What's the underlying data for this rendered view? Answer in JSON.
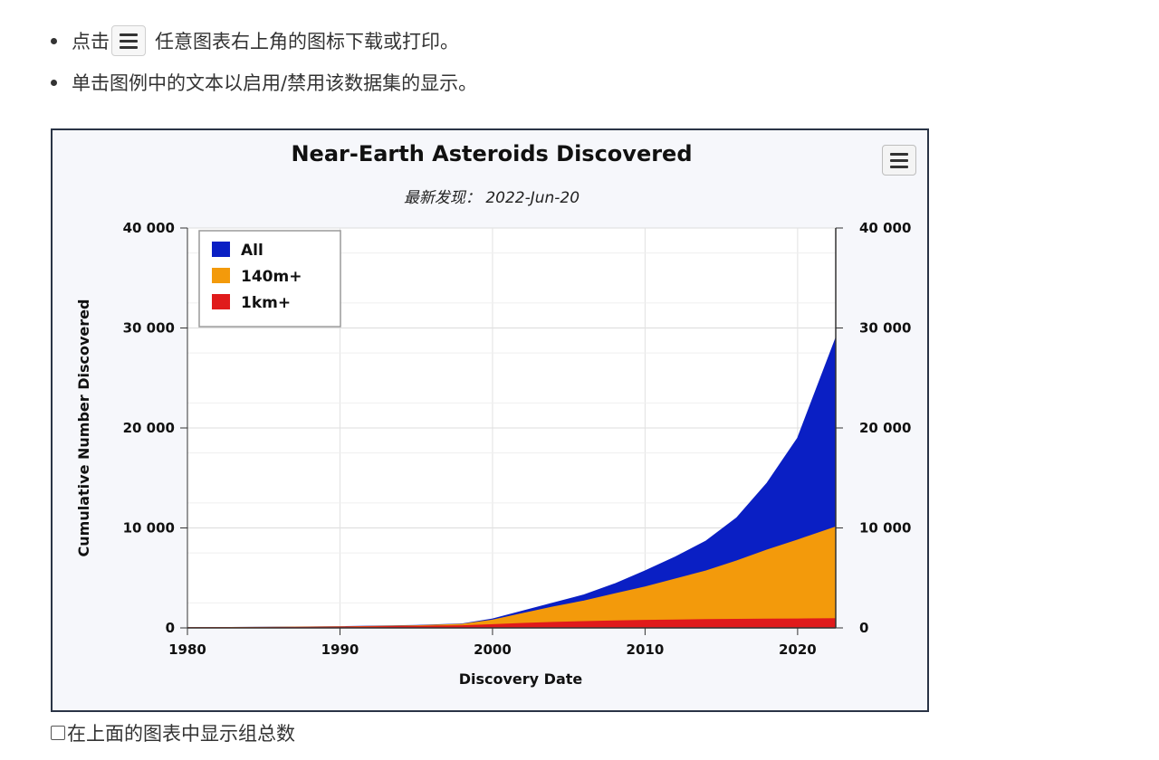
{
  "instructions": [
    {
      "before": "点击",
      "after": "任意图表右上角的图标下载或打印。",
      "has_icon": true
    },
    {
      "before": "单击图例中的文本以启用/禁用该数据集的显示。",
      "after": "",
      "has_icon": false
    }
  ],
  "footer": {
    "checkbox_label": "在上面的图表中显示组总数"
  },
  "chart_data": {
    "type": "area",
    "title": "Near-Earth Asteroids Discovered",
    "subtitle": "最新发现： 2022-Jun-20",
    "xlabel": "Discovery Date",
    "ylabel": "Cumulative Number Discovered",
    "xlim": [
      1980,
      2022.5
    ],
    "ylim": [
      0,
      40000
    ],
    "x_ticks": [
      1980,
      1990,
      2000,
      2010,
      2020
    ],
    "y_ticks": [
      0,
      10000,
      20000,
      30000,
      40000
    ],
    "y_tick_labels": [
      "0",
      "10 000",
      "20 000",
      "30 000",
      "40 000"
    ],
    "dual_y_axis": true,
    "grid": true,
    "legend_position": "top-left",
    "x": [
      1980,
      1985,
      1990,
      1995,
      1998,
      2000,
      2002,
      2004,
      2006,
      2008,
      2010,
      2012,
      2014,
      2016,
      2018,
      2020,
      2022.5
    ],
    "series": [
      {
        "name": "All",
        "color": "#0a1fc4",
        "values": [
          30,
          60,
          130,
          250,
          400,
          900,
          1700,
          2500,
          3300,
          4400,
          5700,
          7100,
          8700,
          11000,
          14500,
          19000,
          29000
        ]
      },
      {
        "name": "140m+",
        "color": "#f39a0b",
        "values": [
          25,
          50,
          110,
          220,
          360,
          780,
          1450,
          2100,
          2700,
          3400,
          4100,
          4900,
          5700,
          6700,
          7800,
          8800,
          10100
        ]
      },
      {
        "name": "1km+",
        "color": "#e01b1b",
        "values": [
          20,
          40,
          80,
          150,
          220,
          330,
          450,
          550,
          630,
          700,
          760,
          800,
          830,
          860,
          880,
          900,
          920
        ]
      }
    ]
  }
}
